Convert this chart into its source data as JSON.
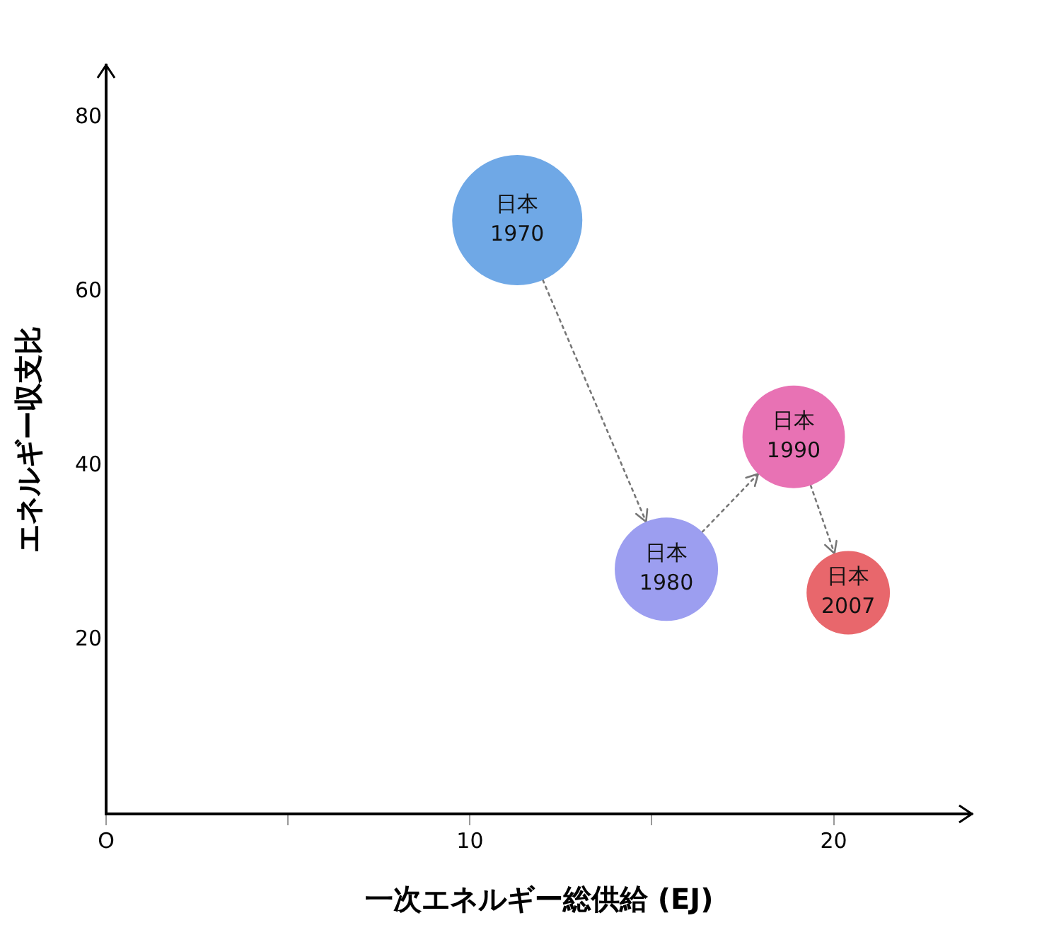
{
  "chart_data": {
    "type": "bubble",
    "xlabel": "一次エネルギー総供給 (EJ)",
    "ylabel": "エネルギー収支比",
    "x": [
      11.3,
      15.4,
      18.9,
      20.4
    ],
    "values": [
      68.2,
      28.1,
      43.3,
      25.4
    ],
    "sizes": [
      1,
      0.63,
      0.62,
      0.41
    ],
    "colors": [
      "#6fa8e6",
      "#9c9ef0",
      "#e872b4",
      "#e8676c"
    ],
    "line_style": "dotted",
    "annotations": [
      {
        "text": "日本\n1970",
        "x": 11.3,
        "y": 68.2
      },
      {
        "text": "日本\n1980",
        "x": 15.4,
        "y": 28.1
      },
      {
        "text": "日本\n1990",
        "x": 18.9,
        "y": 43.3
      },
      {
        "text": "日本\n2007",
        "x": 20.4,
        "y": 25.4
      }
    ],
    "xlim": [
      0,
      23.8
    ],
    "ylim": [
      0,
      86
    ],
    "xticks": [
      {
        "value": 0,
        "label": "O"
      },
      {
        "value": 5,
        "label": null
      },
      10,
      {
        "value": 15,
        "label": null
      },
      20
    ],
    "yticks": [
      20,
      40,
      60,
      80
    ]
  }
}
